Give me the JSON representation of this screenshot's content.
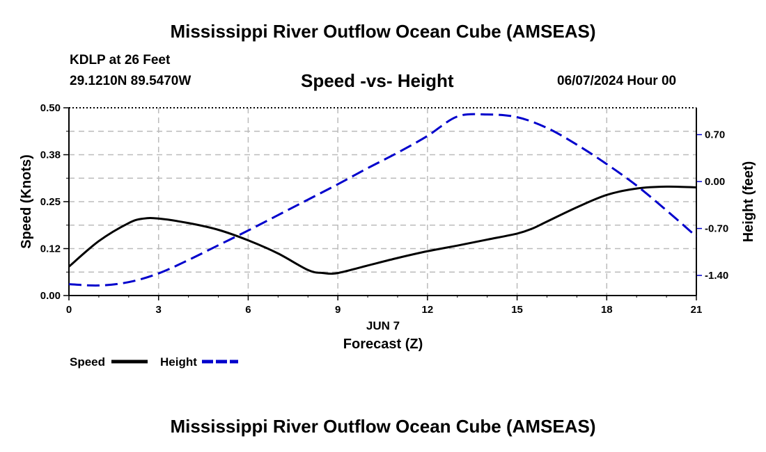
{
  "header": {
    "title": "Mississippi River Outflow Ocean Cube (AMSEAS)",
    "station": "KDLP at 26 Feet",
    "coordinates": "29.1210N  89.5470W",
    "datetime": "06/07/2024 Hour 00"
  },
  "footer": {
    "title": "Mississippi River Outflow Ocean Cube (AMSEAS)"
  },
  "legend": {
    "speed_label": "Speed",
    "height_label": "Height"
  },
  "chart_data": {
    "type": "line",
    "title": "Speed -vs- Height",
    "xlabel": "Forecast (Z)",
    "date_label": "JUN 7",
    "ylabel_left": "Speed (Knots)",
    "ylabel_right": "Height (feet)",
    "xlim": [
      0,
      21
    ],
    "ylim_left": [
      0,
      0.5
    ],
    "ylim_right": [
      -1.7,
      1.1
    ],
    "x_ticks": [
      0,
      3,
      6,
      9,
      12,
      15,
      18,
      21
    ],
    "x_tick_labels": [
      "0",
      "3",
      "6",
      "9",
      "12",
      "15",
      "18",
      "21"
    ],
    "y_left_ticks": [
      0,
      0.125,
      0.25,
      0.375,
      0.5
    ],
    "y_left_tick_labels": [
      "0.00",
      "0.12",
      "0.25",
      "0.38",
      "0.50"
    ],
    "y_right_ticks": [
      -1.4,
      -0.7,
      0,
      0.7
    ],
    "y_right_tick_labels": [
      "-1.40",
      "-0.70",
      "0.00",
      "0.70"
    ],
    "grid": true,
    "colors": {
      "speed": "#000000",
      "height": "#0000cc",
      "grid": "#bbbbbb"
    },
    "series": [
      {
        "name": "Speed",
        "axis": "left",
        "style": "solid",
        "color": "#000000",
        "x": [
          0,
          1,
          2,
          2.5,
          3,
          4,
          5,
          6,
          7,
          8,
          8.5,
          9,
          10,
          11,
          12,
          13,
          14,
          15,
          15.5,
          16,
          17,
          18,
          19,
          20,
          21
        ],
        "values": [
          0.077,
          0.145,
          0.193,
          0.205,
          0.205,
          0.193,
          0.175,
          0.147,
          0.112,
          0.068,
          0.06,
          0.06,
          0.08,
          0.1,
          0.118,
          0.133,
          0.149,
          0.165,
          0.178,
          0.197,
          0.235,
          0.268,
          0.285,
          0.29,
          0.288
        ]
      },
      {
        "name": "Height",
        "axis": "right",
        "style": "dashed",
        "color": "#0000cc",
        "x": [
          0,
          1,
          2,
          3,
          4,
          5,
          6,
          7,
          8,
          9,
          10,
          11,
          12,
          13,
          14,
          15,
          16,
          17,
          18,
          19,
          20,
          21
        ],
        "values": [
          -1.53,
          -1.55,
          -1.5,
          -1.37,
          -1.17,
          -0.95,
          -0.73,
          -0.5,
          -0.27,
          -0.04,
          0.2,
          0.43,
          0.68,
          0.97,
          1.0,
          0.96,
          0.8,
          0.55,
          0.26,
          -0.06,
          -0.43,
          -0.82
        ]
      }
    ]
  }
}
